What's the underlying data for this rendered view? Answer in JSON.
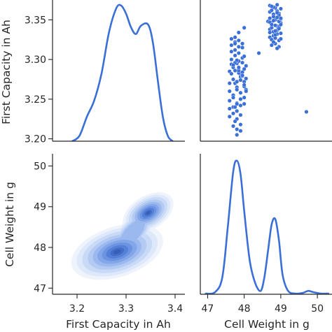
{
  "figure": {
    "type": "pairplot",
    "variables": [
      "First Capacity in Ah",
      "Cell Weight in g"
    ],
    "accent_color": "#3a6fd8"
  },
  "chart_data": [
    {
      "panel": "top-left",
      "type": "line",
      "kind": "kde",
      "xlabel": "",
      "ylabel": "First Capacity in Ah",
      "xlim": [
        3.15,
        3.42
      ],
      "ylim": [
        3.197,
        3.375
      ],
      "y_ticks": [
        "3.20",
        "3.25",
        "3.30",
        "3.35"
      ],
      "y_tick_values": [
        3.2,
        3.25,
        3.3,
        3.35
      ],
      "density_curve": {
        "x": [
          3.19,
          3.205,
          3.22,
          3.235,
          3.25,
          3.265,
          3.28,
          3.29,
          3.3,
          3.31,
          3.32,
          3.33,
          3.345,
          3.355,
          3.365,
          3.375,
          3.385,
          3.395
        ],
        "density": [
          0.0,
          0.04,
          0.18,
          0.3,
          0.5,
          0.8,
          0.98,
          1.0,
          0.94,
          0.84,
          0.79,
          0.85,
          0.86,
          0.72,
          0.44,
          0.18,
          0.04,
          0.0
        ]
      }
    },
    {
      "panel": "top-right",
      "type": "scatter",
      "xlabel": "",
      "ylabel": "",
      "xlim": [
        46.8,
        50.4
      ],
      "ylim": [
        3.197,
        3.375
      ],
      "points": {
        "x": [
          47.6,
          47.7,
          47.8,
          47.9,
          48.0,
          47.65,
          47.75,
          47.85,
          47.95,
          48.05,
          47.6,
          47.7,
          47.8,
          47.9,
          48.0,
          47.65,
          47.75,
          47.85,
          47.95,
          47.6,
          47.7,
          47.8,
          47.9,
          48.0,
          47.65,
          47.75,
          47.85,
          47.95,
          48.05,
          47.6,
          47.7,
          47.8,
          47.9,
          48.0,
          47.65,
          47.75,
          47.85,
          47.95,
          47.6,
          47.7,
          47.8,
          47.9,
          48.0,
          47.65,
          47.75,
          47.85,
          47.95,
          48.05,
          47.6,
          47.7,
          47.8,
          47.9,
          48.0,
          47.65,
          47.75,
          47.85,
          47.95,
          47.7,
          47.8,
          47.9,
          47.75,
          47.85,
          47.95,
          47.7,
          47.8,
          47.9,
          47.85,
          48.0,
          47.65,
          47.75,
          48.05,
          47.8,
          47.9,
          48.0,
          47.8,
          47.85,
          47.75,
          47.8,
          47.75,
          47.85,
          48.4,
          48.65,
          48.7,
          48.75,
          48.8,
          48.85,
          48.9,
          48.95,
          49.0,
          48.7,
          48.75,
          48.8,
          48.85,
          48.9,
          48.95,
          49.0,
          48.7,
          48.75,
          48.8,
          48.85,
          48.9,
          48.95,
          49.0,
          48.7,
          48.75,
          48.8,
          48.85,
          48.9,
          48.95,
          48.7,
          48.75,
          48.8,
          48.85,
          48.9,
          48.95,
          49.0,
          48.7,
          48.8,
          48.9,
          48.75,
          48.85,
          48.95,
          48.8,
          48.9,
          48.85,
          48.95,
          48.7,
          49.0,
          49.0,
          49.0,
          48.75,
          48.85,
          48.8,
          48.9,
          49.7
        ],
        "y": [
          3.285,
          3.29,
          3.295,
          3.28,
          3.288,
          3.3,
          3.305,
          3.298,
          3.302,
          3.292,
          3.27,
          3.275,
          3.265,
          3.278,
          3.272,
          3.31,
          3.312,
          3.308,
          3.315,
          3.26,
          3.255,
          3.262,
          3.258,
          3.266,
          3.282,
          3.286,
          3.283,
          3.279,
          3.276,
          3.248,
          3.252,
          3.245,
          3.25,
          3.244,
          3.318,
          3.322,
          3.316,
          3.32,
          3.238,
          3.24,
          3.235,
          3.242,
          3.268,
          3.294,
          3.296,
          3.289,
          3.284,
          3.262,
          3.228,
          3.232,
          3.225,
          3.23,
          3.304,
          3.326,
          3.328,
          3.324,
          3.296,
          3.293,
          3.299,
          3.274,
          3.27,
          3.286,
          3.28,
          3.216,
          3.212,
          3.218,
          3.334,
          3.34,
          3.3,
          3.24,
          3.26,
          3.205,
          3.21,
          3.252,
          3.272,
          3.29,
          3.222,
          3.244,
          3.32,
          3.308,
          3.308,
          3.348,
          3.352,
          3.345,
          3.355,
          3.35,
          3.342,
          3.358,
          3.346,
          3.338,
          3.34,
          3.335,
          3.343,
          3.337,
          3.341,
          3.333,
          3.36,
          3.362,
          3.357,
          3.365,
          3.361,
          3.356,
          3.364,
          3.328,
          3.325,
          3.33,
          3.327,
          3.332,
          3.324,
          3.347,
          3.344,
          3.349,
          3.343,
          3.353,
          3.348,
          3.351,
          3.368,
          3.366,
          3.369,
          3.318,
          3.32,
          3.316,
          3.354,
          3.359,
          3.336,
          3.339,
          3.334,
          3.326,
          3.344,
          3.352,
          3.367,
          3.331,
          3.322,
          3.314,
          3.234
        ]
      }
    },
    {
      "panel": "bottom-left",
      "type": "heatmap",
      "kind": "kde-filled-contour",
      "xlabel": "First Capacity in Ah",
      "ylabel": "Cell Weight in g",
      "xlim": [
        3.15,
        3.42
      ],
      "ylim": [
        46.85,
        50.3
      ],
      "x_ticks": [
        "3.2",
        "3.3",
        "3.4"
      ],
      "x_tick_values": [
        3.2,
        3.3,
        3.4
      ],
      "y_ticks": [
        "47",
        "48",
        "49",
        "50"
      ],
      "y_tick_values": [
        47,
        48,
        49,
        50
      ],
      "density_peaks": [
        {
          "x": 3.28,
          "y": 47.85,
          "relative_density": 1.0
        },
        {
          "x": 3.345,
          "y": 48.85,
          "relative_density": 0.75
        }
      ]
    },
    {
      "panel": "bottom-right",
      "type": "line",
      "kind": "kde",
      "xlabel": "Cell Weight in g",
      "ylabel": "",
      "xlim": [
        46.8,
        50.4
      ],
      "ylim": [
        0,
        1.05
      ],
      "x_ticks": [
        "47",
        "48",
        "49",
        "50"
      ],
      "x_tick_values": [
        47,
        48,
        49,
        50
      ],
      "density_curve": {
        "x": [
          46.95,
          47.2,
          47.4,
          47.55,
          47.7,
          47.8,
          47.9,
          48.0,
          48.15,
          48.3,
          48.45,
          48.55,
          48.65,
          48.75,
          48.85,
          48.95,
          49.05,
          49.2,
          49.4,
          49.6,
          49.75,
          49.9,
          50.1,
          50.3
        ],
        "density": [
          0.0,
          0.01,
          0.12,
          0.5,
          0.92,
          1.0,
          0.9,
          0.62,
          0.25,
          0.08,
          0.02,
          0.12,
          0.32,
          0.52,
          0.56,
          0.4,
          0.14,
          0.02,
          0.0,
          0.005,
          0.02,
          0.01,
          0.0,
          0.0
        ]
      }
    }
  ]
}
